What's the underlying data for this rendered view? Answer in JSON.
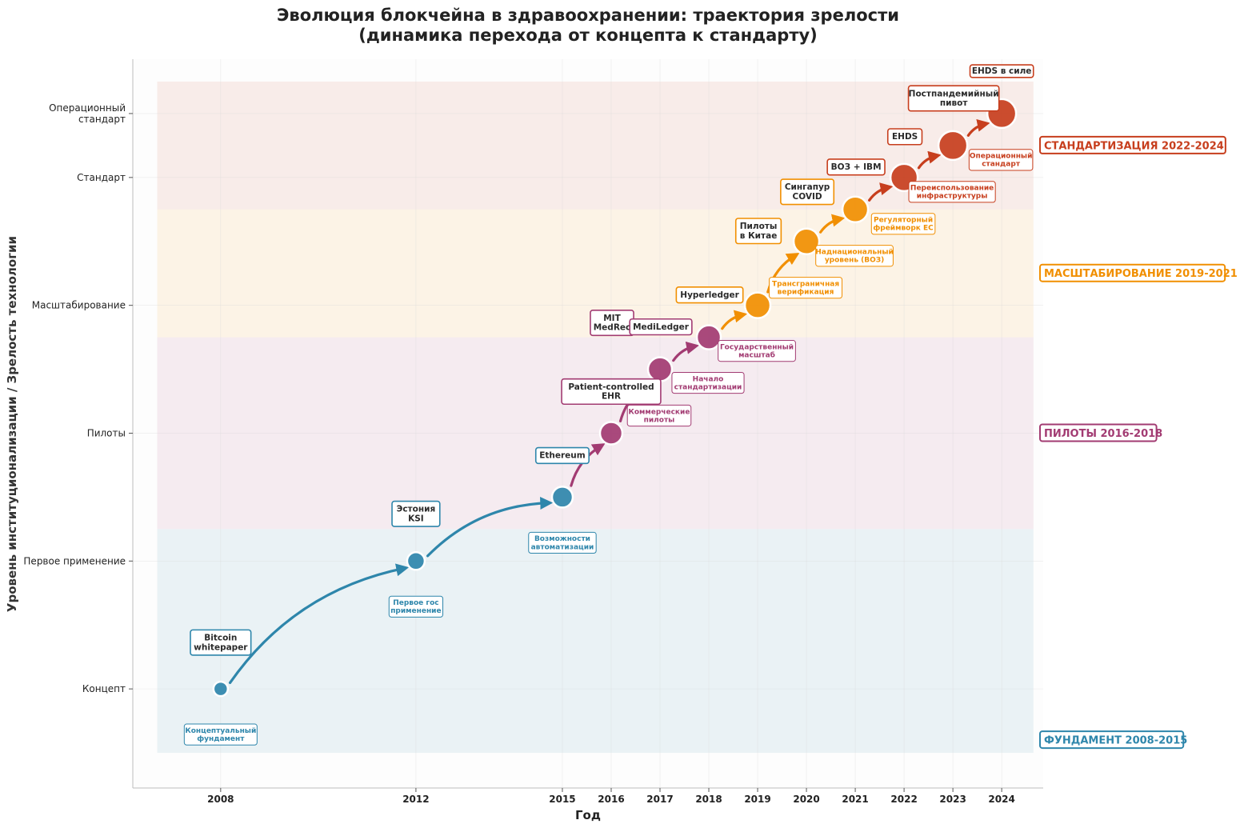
{
  "chart_data": {
    "type": "line",
    "title": "Эволюция блокчейна в здравоохранении: траектория зрелости",
    "subtitle": "(динамика перехода от концепта к стандарту)",
    "xlabel": "Год",
    "ylabel": "Уровень институционализации / Зрелость технологии",
    "x_ticks": [
      2008,
      2012,
      2015,
      2016,
      2017,
      2018,
      2019,
      2020,
      2021,
      2022,
      2023,
      2024
    ],
    "xlim": [
      2006.2,
      2024.85
    ],
    "ylim": [
      -1.55,
      9.85
    ],
    "y_ticks": [
      {
        "value": 0,
        "label": [
          "Концепт"
        ]
      },
      {
        "value": 2,
        "label": [
          "Первое применение"
        ]
      },
      {
        "value": 4,
        "label": [
          "Пилоты"
        ]
      },
      {
        "value": 6,
        "label": [
          "Масштабирование"
        ]
      },
      {
        "value": 8,
        "label": [
          "Стандарт"
        ]
      },
      {
        "value": 9,
        "label": [
          "Операционный",
          "стандарт"
        ]
      }
    ],
    "phases": [
      {
        "name": "ФУНДАМЕНТ 2008-2015",
        "y_from": -1.0,
        "y_to": 2.5,
        "color": "#2e86ab",
        "label_y": -0.8
      },
      {
        "name": "ПИЛОТЫ 2016-2018",
        "y_from": 2.5,
        "y_to": 5.5,
        "color": "#a23b72",
        "label_y": 4.0
      },
      {
        "name": "МАСШТАБИРОВАНИЕ 2019-2021",
        "y_from": 5.5,
        "y_to": 7.5,
        "color": "#f18f01",
        "label_y": 6.5
      },
      {
        "name": "СТАНДАРТИЗАЦИЯ 2022-2024",
        "y_from": 7.5,
        "y_to": 9.5,
        "color": "#c73e1d",
        "label_y": 8.5
      }
    ],
    "points": [
      {
        "x": 2008,
        "y": 0,
        "phase": 0,
        "size": 9,
        "event": [
          "Bitcoin",
          "whitepaper"
        ],
        "desc": [
          "Концептуальный",
          "фундамент"
        ]
      },
      {
        "x": 2012,
        "y": 2,
        "phase": 0,
        "size": 11,
        "event": [
          "Эстония",
          "KSI"
        ],
        "desc": [
          "Первое гос",
          "применение"
        ]
      },
      {
        "x": 2015,
        "y": 3,
        "phase": 0,
        "size": 13,
        "event": [
          "Ethereum"
        ],
        "desc": [
          "Возможности",
          "автоматизации"
        ]
      },
      {
        "x": 2016,
        "y": 4,
        "phase": 1,
        "size": 14,
        "event": [
          "Patient-controlled",
          "EHR"
        ],
        "desc": [
          "Коммерческие",
          "пилоты"
        ]
      },
      {
        "x": 2017,
        "y": 5,
        "phase": 1,
        "size": 15,
        "event": [
          "MIT",
          "MedRec"
        ],
        "desc": [
          "Начало",
          "стандартизации"
        ]
      },
      {
        "x": 2018,
        "y": 5.5,
        "phase": 1,
        "size": 15,
        "event": [
          "MediLedger"
        ],
        "desc": [
          "Государственный",
          "масштаб"
        ]
      },
      {
        "x": 2019,
        "y": 6,
        "phase": 2,
        "size": 16,
        "event": [
          "Hyperledger"
        ],
        "desc": [
          "Трансграничная",
          "верификация"
        ]
      },
      {
        "x": 2020,
        "y": 7,
        "phase": 2,
        "size": 16,
        "event": [
          "Пилоты",
          "в Китае"
        ],
        "desc": [
          "Наднациональный",
          "уровень (ВОЗ)"
        ]
      },
      {
        "x": 2021,
        "y": 7.5,
        "phase": 2,
        "size": 16,
        "event": [
          "Сингапур",
          "COVID"
        ],
        "desc": [
          "Регуляторный",
          "фреймворк ЕС"
        ]
      },
      {
        "x": 2022,
        "y": 8,
        "phase": 3,
        "size": 17,
        "event": [
          "ВОЗ + IBM"
        ],
        "desc": [
          "Переиспользование",
          "инфраструктуры"
        ]
      },
      {
        "x": 2023,
        "y": 8.5,
        "phase": 3,
        "size": 18,
        "event": [
          "EHDS"
        ],
        "desc": [
          "Операционный",
          "стандарт"
        ]
      },
      {
        "x": 2024,
        "y": 9,
        "phase": 3,
        "size": 18,
        "event": [
          "Постпандемийный",
          "пивот",
          "EHDS в силе"
        ],
        "desc": []
      }
    ]
  }
}
